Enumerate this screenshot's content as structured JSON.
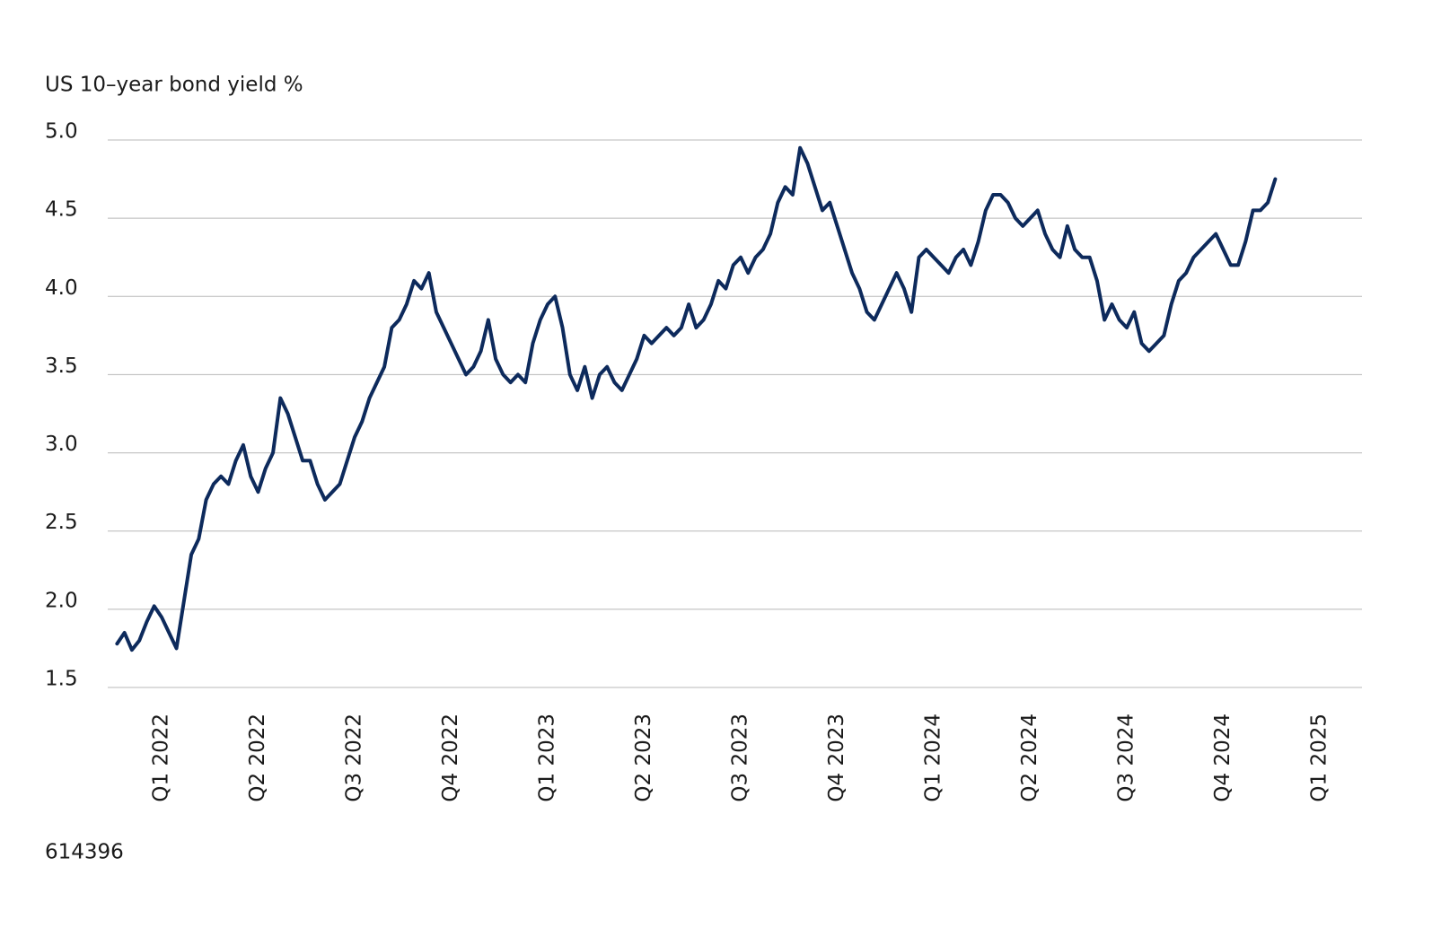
{
  "chart_data": {
    "type": "line",
    "title": "US 10–year bond yield %",
    "footnote": "614396",
    "categories": [
      null,
      null,
      null,
      null,
      null,
      null,
      "Q1 2022",
      null,
      null,
      null,
      null,
      null,
      null,
      null,
      null,
      null,
      null,
      null,
      null,
      "Q2 2022",
      null,
      null,
      null,
      null,
      null,
      null,
      null,
      null,
      null,
      null,
      null,
      null,
      "Q3 2022",
      null,
      null,
      null,
      null,
      null,
      null,
      null,
      null,
      null,
      null,
      null,
      null,
      "Q4 2022",
      null,
      null,
      null,
      null,
      null,
      null,
      null,
      null,
      null,
      null,
      null,
      null,
      "Q1 2023",
      null,
      null,
      null,
      null,
      null,
      null,
      null,
      null,
      null,
      null,
      null,
      null,
      "Q2 2023",
      null,
      null,
      null,
      null,
      null,
      null,
      null,
      null,
      null,
      null,
      null,
      null,
      "Q3 2023",
      null,
      null,
      null,
      null,
      null,
      null,
      null,
      null,
      null,
      null,
      null,
      null,
      "Q4 2023",
      null,
      null,
      null,
      null,
      null,
      null,
      null,
      null,
      null,
      null,
      null,
      null,
      "Q1 2024",
      null,
      null,
      null,
      null,
      null,
      null,
      null,
      null,
      null,
      null,
      null,
      null,
      "Q2 2024",
      null,
      null,
      null,
      null,
      null,
      null,
      null,
      null,
      null,
      null,
      null,
      null,
      "Q3 2024",
      null,
      null,
      null,
      null,
      null,
      null,
      null,
      null,
      null,
      null,
      null,
      null,
      "Q4 2024",
      null,
      null,
      null,
      null,
      null,
      null,
      null,
      null,
      null,
      null,
      null,
      null,
      "Q1 2025"
    ],
    "values": [
      1.78,
      1.85,
      1.74,
      1.8,
      1.92,
      2.02,
      1.95,
      1.85,
      1.75,
      2.05,
      2.35,
      2.45,
      2.7,
      2.8,
      2.85,
      2.8,
      2.95,
      3.05,
      2.85,
      2.75,
      2.9,
      3.0,
      3.35,
      3.25,
      3.1,
      2.95,
      2.95,
      2.8,
      2.7,
      2.75,
      2.8,
      2.95,
      3.1,
      3.2,
      3.35,
      3.45,
      3.55,
      3.8,
      3.85,
      3.95,
      4.1,
      4.05,
      4.15,
      3.9,
      3.8,
      3.7,
      3.6,
      3.5,
      3.55,
      3.65,
      3.85,
      3.6,
      3.5,
      3.45,
      3.5,
      3.45,
      3.7,
      3.85,
      3.95,
      4.0,
      3.8,
      3.5,
      3.4,
      3.55,
      3.35,
      3.5,
      3.55,
      3.45,
      3.4,
      3.5,
      3.6,
      3.75,
      3.7,
      3.75,
      3.8,
      3.75,
      3.8,
      3.95,
      3.8,
      3.85,
      3.95,
      4.1,
      4.05,
      4.2,
      4.25,
      4.15,
      4.25,
      4.3,
      4.4,
      4.6,
      4.7,
      4.65,
      4.95,
      4.85,
      4.7,
      4.55,
      4.6,
      4.45,
      4.3,
      4.15,
      4.05,
      3.9,
      3.85,
      3.95,
      4.05,
      4.15,
      4.05,
      3.9,
      4.25,
      4.3,
      4.25,
      4.2,
      4.15,
      4.25,
      4.3,
      4.2,
      4.35,
      4.55,
      4.65,
      4.65,
      4.6,
      4.5,
      4.45,
      4.5,
      4.55,
      4.4,
      4.3,
      4.25,
      4.45,
      4.3,
      4.25,
      4.25,
      4.1,
      3.85,
      3.95,
      3.85,
      3.8,
      3.9,
      3.7,
      3.65,
      3.7,
      3.75,
      3.95,
      4.1,
      4.15,
      4.25,
      4.3,
      4.35,
      4.4,
      4.3,
      4.2,
      4.2,
      4.35,
      4.55,
      4.55,
      4.6,
      4.75,
      null,
      null,
      null,
      null,
      null,
      null
    ],
    "color": "#0d2a5c",
    "ylim": [
      1.5,
      5.0
    ],
    "yticks": [
      {
        "value": 1.5,
        "label": "1.5"
      },
      {
        "value": 2,
        "label": "2.0"
      },
      {
        "value": 2.5,
        "label": "2.5"
      },
      {
        "value": 3,
        "label": "3.0"
      },
      {
        "value": 3.5,
        "label": "3.5"
      },
      {
        "value": 4,
        "label": "4.0"
      },
      {
        "value": 4.5,
        "label": "4.5"
      },
      {
        "value": 5,
        "label": "5.0"
      }
    ],
    "grid": true
  }
}
